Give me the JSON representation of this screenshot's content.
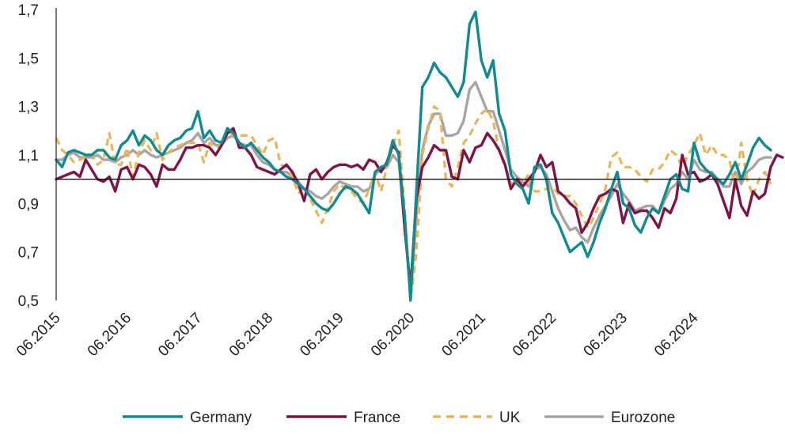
{
  "chart_data": {
    "type": "line",
    "title": "",
    "xlabel": "",
    "ylabel": "",
    "ylim": [
      0.5,
      1.7
    ],
    "baseline": 1.0,
    "y_ticks": [
      {
        "value": 0.5,
        "label": "0,5"
      },
      {
        "value": 0.7,
        "label": "0,7"
      },
      {
        "value": 0.9,
        "label": "0,9"
      },
      {
        "value": 1.1,
        "label": "1,1"
      },
      {
        "value": 1.3,
        "label": "1,3"
      },
      {
        "value": 1.5,
        "label": "1,5"
      },
      {
        "value": 1.7,
        "label": "1,7"
      }
    ],
    "x_ticks": [
      "06.2015",
      "06.2016",
      "06.2017",
      "06.2018",
      "06.2019",
      "06.2020",
      "06.2021",
      "06.2022",
      "06.2023",
      "06.2024"
    ],
    "x_start": "06.2015",
    "x_end": "03.2025",
    "legend_position": "bottom",
    "grid": false,
    "series": [
      {
        "name": "Germany",
        "color": "#128a8f",
        "dash": "solid",
        "values": [
          1.08,
          1.05,
          1.11,
          1.12,
          1.11,
          1.1,
          1.1,
          1.12,
          1.12,
          1.09,
          1.08,
          1.14,
          1.16,
          1.2,
          1.14,
          1.18,
          1.16,
          1.12,
          1.1,
          1.14,
          1.16,
          1.17,
          1.2,
          1.21,
          1.28,
          1.17,
          1.2,
          1.16,
          1.15,
          1.21,
          1.19,
          1.15,
          1.13,
          1.15,
          1.12,
          1.09,
          1.07,
          1.04,
          1.03,
          1.01,
          1.0,
          0.98,
          0.96,
          0.93,
          0.9,
          0.88,
          0.87,
          0.9,
          0.94,
          0.97,
          0.96,
          0.94,
          0.9,
          0.86,
          1.03,
          1.05,
          1.06,
          1.16,
          1.1,
          0.85,
          0.5,
          0.95,
          1.38,
          1.42,
          1.48,
          1.44,
          1.42,
          1.38,
          1.34,
          1.4,
          1.64,
          1.69,
          1.49,
          1.42,
          1.49,
          1.27,
          1.2,
          1.02,
          0.98,
          0.96,
          0.9,
          1.05,
          1.06,
          1.0,
          0.86,
          0.82,
          0.76,
          0.7,
          0.72,
          0.74,
          0.68,
          0.74,
          0.82,
          0.88,
          0.96,
          1.03,
          0.9,
          0.88,
          0.81,
          0.78,
          0.84,
          0.88,
          0.86,
          0.93,
          1.0,
          1.02,
          0.96,
          0.95,
          1.15,
          1.07,
          1.04,
          1.02,
          1.0,
          0.98,
          1.02,
          1.07,
          1.0,
          1.06,
          1.13,
          1.17,
          1.14,
          1.12
        ]
      },
      {
        "name": "France",
        "color": "#7d1547",
        "dash": "solid",
        "values": [
          1.0,
          1.01,
          1.02,
          1.03,
          1.01,
          1.08,
          1.04,
          1.0,
          0.99,
          1.01,
          0.95,
          1.04,
          1.05,
          1.0,
          1.06,
          1.05,
          1.02,
          0.97,
          1.06,
          1.04,
          1.04,
          1.08,
          1.13,
          1.13,
          1.14,
          1.14,
          1.13,
          1.1,
          1.14,
          1.19,
          1.21,
          1.13,
          1.13,
          1.1,
          1.05,
          1.04,
          1.03,
          1.02,
          1.04,
          1.06,
          1.03,
          0.98,
          0.91,
          1.02,
          1.04,
          1.0,
          1.03,
          1.05,
          1.06,
          1.06,
          1.05,
          1.06,
          1.04,
          1.08,
          1.07,
          1.03,
          1.07,
          1.14,
          1.11,
          0.8,
          0.55,
          0.92,
          1.05,
          1.09,
          1.14,
          1.12,
          1.12,
          1.01,
          1.0,
          1.12,
          1.07,
          1.13,
          1.14,
          1.19,
          1.16,
          1.12,
          1.06,
          0.96,
          1.0,
          0.97,
          1.0,
          1.03,
          1.1,
          1.05,
          1.07,
          0.95,
          0.93,
          0.9,
          0.88,
          0.78,
          0.82,
          0.88,
          0.93,
          0.94,
          0.96,
          0.95,
          0.82,
          0.9,
          0.86,
          0.87,
          0.87,
          0.84,
          0.8,
          0.88,
          0.86,
          0.92,
          1.1,
          1.02,
          1.03,
          0.99,
          1.0,
          1.02,
          0.98,
          0.91,
          0.84,
          1.0,
          0.89,
          0.85,
          0.95,
          0.92,
          0.94,
          1.05,
          1.1,
          1.09
        ]
      },
      {
        "name": "UK",
        "color": "#e8b55a",
        "dash": "dashed",
        "values": [
          1.17,
          1.12,
          1.1,
          1.07,
          1.08,
          1.09,
          1.1,
          1.06,
          1.08,
          1.19,
          1.06,
          1.06,
          1.13,
          1.01,
          1.11,
          1.16,
          1.12,
          1.19,
          1.08,
          1.11,
          1.13,
          1.14,
          1.15,
          1.15,
          1.15,
          1.07,
          1.15,
          1.13,
          1.14,
          1.2,
          1.18,
          1.18,
          1.18,
          1.18,
          1.14,
          1.1,
          1.16,
          1.17,
          1.06,
          1.05,
          1.01,
          0.94,
          0.97,
          0.92,
          0.87,
          0.82,
          0.88,
          0.95,
          0.98,
          0.96,
          0.95,
          0.92,
          0.9,
          0.96,
          1.03,
          0.95,
          1.05,
          1.14,
          1.2,
          0.88,
          0.5,
          0.7,
          1.1,
          1.21,
          1.3,
          1.28,
          1.0,
          0.97,
          1.05,
          1.15,
          1.18,
          1.23,
          1.27,
          1.29,
          1.24,
          1.12,
          1.05,
          0.98,
          1.0,
          0.98,
          1.02,
          0.95,
          0.95,
          0.96,
          0.97,
          0.94,
          0.93,
          0.93,
          0.9,
          0.85,
          0.8,
          0.84,
          0.9,
          0.96,
          1.09,
          1.11,
          1.05,
          1.05,
          1.04,
          1.01,
          0.99,
          1.04,
          1.04,
          1.07,
          1.12,
          1.1,
          1.05,
          1.1,
          1.14,
          1.19,
          1.1,
          1.14,
          1.1,
          1.1,
          1.08,
          0.96,
          1.15,
          1.0,
          0.93,
          1.0,
          1.03,
          0.98
        ]
      },
      {
        "name": "Eurozone",
        "color": "#a9a5a2",
        "dash": "solid",
        "values": [
          1.08,
          1.08,
          1.1,
          1.11,
          1.09,
          1.09,
          1.09,
          1.1,
          1.08,
          1.08,
          1.07,
          1.09,
          1.1,
          1.12,
          1.1,
          1.12,
          1.1,
          1.09,
          1.1,
          1.11,
          1.12,
          1.13,
          1.15,
          1.16,
          1.19,
          1.15,
          1.17,
          1.14,
          1.14,
          1.17,
          1.18,
          1.15,
          1.14,
          1.14,
          1.1,
          1.07,
          1.06,
          1.04,
          1.03,
          1.03,
          1.01,
          0.99,
          0.96,
          0.95,
          0.93,
          0.92,
          0.94,
          0.97,
          0.99,
          0.98,
          0.97,
          0.97,
          0.95,
          0.96,
          1.02,
          1.04,
          1.05,
          1.1,
          1.07,
          0.85,
          0.51,
          0.85,
          1.12,
          1.22,
          1.27,
          1.27,
          1.18,
          1.18,
          1.19,
          1.24,
          1.37,
          1.4,
          1.34,
          1.28,
          1.28,
          1.2,
          1.12,
          1.04,
          1.01,
          0.99,
          0.97,
          1.04,
          1.05,
          1.02,
          0.95,
          0.88,
          0.83,
          0.79,
          0.8,
          0.76,
          0.74,
          0.8,
          0.85,
          0.89,
          0.93,
          0.98,
          0.94,
          0.91,
          0.87,
          0.88,
          0.89,
          0.89,
          0.86,
          0.91,
          0.96,
          0.98,
          1.03,
          1.0,
          1.08,
          1.04,
          1.03,
          1.03,
          1.0,
          0.97,
          0.97,
          1.03,
          0.98,
          1.03,
          1.05,
          1.08,
          1.09,
          1.09
        ]
      }
    ]
  }
}
